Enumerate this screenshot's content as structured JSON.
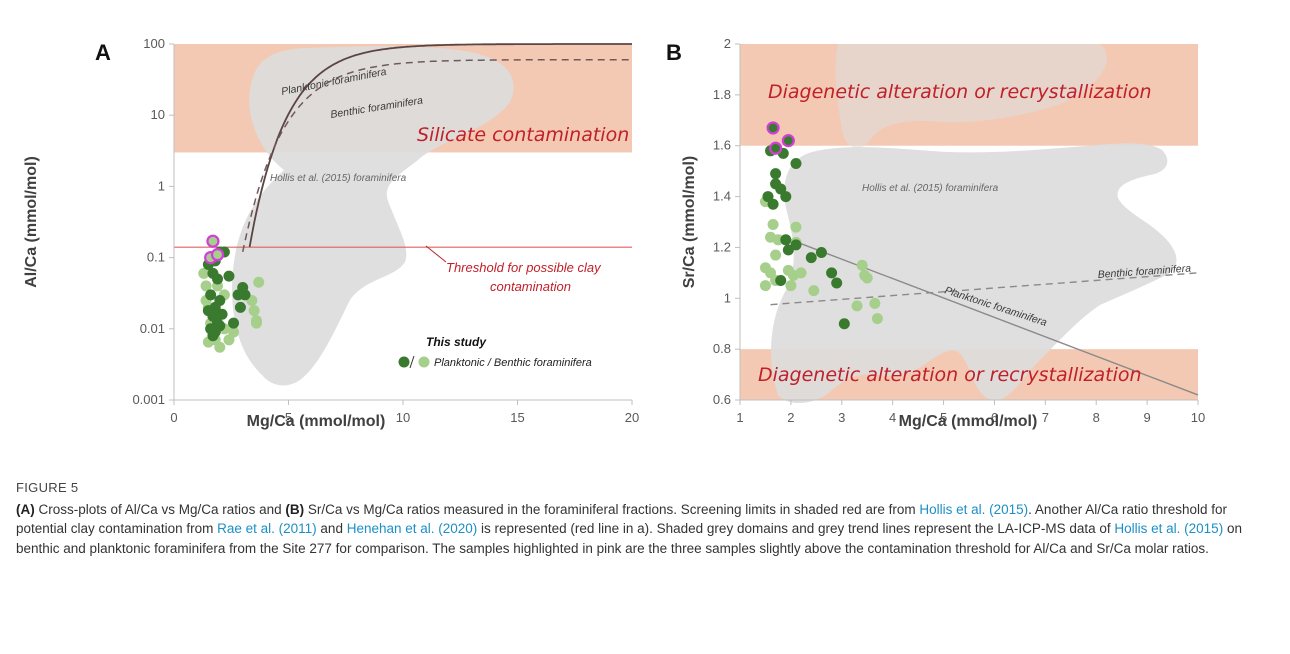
{
  "colors": {
    "planktonic": "#3a7a2f",
    "benthic": "#a6cf8c",
    "highlight": "#d23fd8",
    "contamination_zone": "#f4c9b3",
    "hollis_domain": "#dcdcdc",
    "threshold_line": "#e06060",
    "link": "#1c8fc7"
  },
  "chart_data": [
    {
      "panel": "A",
      "type": "scatter",
      "xlabel": "Mg/Ca (mmol/mol)",
      "ylabel": "Al/Ca (mmol/mol)",
      "xlim": [
        0,
        20
      ],
      "ylim": [
        0.001,
        100
      ],
      "yscale": "log",
      "xticks": [
        "0",
        "5",
        "10",
        "15",
        "20"
      ],
      "yticks": [
        "0.001",
        "0.01",
        "0.1",
        "1",
        "10",
        "100"
      ],
      "shaded_zone": {
        "label": "Silicate contamination",
        "y_from": 3,
        "y_to": 100
      },
      "threshold": {
        "label_line1": "Threshold for possible clay",
        "label_line2": "contamination",
        "y": 0.14
      },
      "domain_label": "Hollis et al. (2015) foraminifera",
      "trend_lines": [
        {
          "name": "Planktonic foraminifera",
          "style": "solid"
        },
        {
          "name": "Benthic foraminifera",
          "style": "dashed"
        }
      ],
      "legend": {
        "title": "This study",
        "entry": "Planktonic / Benthic foraminifera"
      },
      "series": [
        {
          "name": "Planktonic",
          "points": [
            [
              1.6,
              0.1
            ],
            [
              1.8,
              0.09
            ],
            [
              2.0,
              0.12
            ],
            [
              2.2,
              0.12
            ],
            [
              1.5,
              0.08
            ],
            [
              1.7,
              0.06
            ],
            [
              1.9,
              0.05
            ],
            [
              1.6,
              0.03
            ],
            [
              1.8,
              0.02
            ],
            [
              2.0,
              0.025
            ],
            [
              1.5,
              0.018
            ],
            [
              1.7,
              0.015
            ],
            [
              1.9,
              0.012
            ],
            [
              1.6,
              0.01
            ],
            [
              1.8,
              0.009
            ],
            [
              2.1,
              0.016
            ],
            [
              2.4,
              0.055
            ],
            [
              2.6,
              0.012
            ],
            [
              2.8,
              0.03
            ],
            [
              3.0,
              0.038
            ],
            [
              3.1,
              0.03
            ],
            [
              2.9,
              0.02
            ],
            [
              1.7,
              0.008
            ],
            [
              2.0,
              0.011
            ]
          ]
        },
        {
          "name": "Benthic",
          "points": [
            [
              1.3,
              0.06
            ],
            [
              1.4,
              0.04
            ],
            [
              1.5,
              0.02
            ],
            [
              1.6,
              0.012
            ],
            [
              1.7,
              0.009
            ],
            [
              1.5,
              0.0065
            ],
            [
              1.8,
              0.007
            ],
            [
              2.0,
              0.0055
            ],
            [
              2.2,
              0.01
            ],
            [
              2.4,
              0.007
            ],
            [
              2.6,
              0.009
            ],
            [
              3.4,
              0.025
            ],
            [
              3.5,
              0.018
            ],
            [
              3.6,
              0.013
            ],
            [
              3.7,
              0.045
            ],
            [
              3.6,
              0.012
            ],
            [
              1.9,
              0.04
            ],
            [
              2.2,
              0.03
            ],
            [
              1.4,
              0.025
            ]
          ]
        },
        {
          "name": "Highlighted",
          "points": [
            [
              1.7,
              0.17
            ],
            [
              1.6,
              0.1
            ],
            [
              1.9,
              0.11
            ]
          ]
        }
      ]
    },
    {
      "panel": "B",
      "type": "scatter",
      "xlabel": "Mg/Ca (mmol/mol)",
      "ylabel": "Sr/Ca (mmol/mol)",
      "xlim": [
        1,
        10
      ],
      "ylim": [
        0.6,
        2
      ],
      "xticks": [
        "1",
        "2",
        "3",
        "4",
        "5",
        "6",
        "7",
        "8",
        "9",
        "10"
      ],
      "yticks": [
        "0.6",
        "0.8",
        "1",
        "1.2",
        "1.4",
        "1.6",
        "1.8",
        "2"
      ],
      "shaded_zones": [
        {
          "label": "Diagenetic alteration or recrystallization",
          "y_from": 1.6,
          "y_to": 2.0
        },
        {
          "label": "Diagenetic alteration or recrystallization",
          "y_from": 0.6,
          "y_to": 0.8
        }
      ],
      "domain_label": "Hollis et al. (2015) foraminifera",
      "trend_lines": [
        {
          "name": "Benthic foraminifera",
          "style": "dashed",
          "from": [
            1.6,
            0.975
          ],
          "to": [
            10,
            1.1
          ]
        },
        {
          "name": "Planktonic foraminifera",
          "style": "solid",
          "from": [
            2.0,
            1.23
          ],
          "to": [
            10,
            0.62
          ]
        }
      ],
      "series": [
        {
          "name": "Planktonic",
          "points": [
            [
              1.6,
              1.58
            ],
            [
              1.85,
              1.57
            ],
            [
              2.1,
              1.53
            ],
            [
              1.7,
              1.49
            ],
            [
              1.7,
              1.45
            ],
            [
              1.8,
              1.43
            ],
            [
              1.9,
              1.4
            ],
            [
              1.65,
              1.37
            ],
            [
              1.55,
              1.4
            ],
            [
              1.9,
              1.23
            ],
            [
              2.1,
              1.21
            ],
            [
              1.95,
              1.19
            ],
            [
              2.6,
              1.18
            ],
            [
              2.4,
              1.16
            ],
            [
              2.8,
              1.1
            ],
            [
              2.9,
              1.06
            ],
            [
              1.8,
              1.07
            ],
            [
              3.05,
              0.9
            ]
          ]
        },
        {
          "name": "Benthic",
          "points": [
            [
              1.5,
              1.38
            ],
            [
              1.65,
              1.29
            ],
            [
              1.6,
              1.24
            ],
            [
              1.75,
              1.23
            ],
            [
              2.1,
              1.28
            ],
            [
              2.1,
              1.22
            ],
            [
              1.7,
              1.17
            ],
            [
              1.5,
              1.12
            ],
            [
              1.6,
              1.1
            ],
            [
              1.5,
              1.05
            ],
            [
              1.7,
              1.07
            ],
            [
              1.95,
              1.11
            ],
            [
              2.05,
              1.09
            ],
            [
              2.2,
              1.1
            ],
            [
              2.0,
              1.05
            ],
            [
              2.45,
              1.03
            ],
            [
              3.4,
              1.13
            ],
            [
              3.45,
              1.09
            ],
            [
              3.5,
              1.08
            ],
            [
              3.3,
              0.97
            ],
            [
              3.65,
              0.98
            ],
            [
              3.7,
              0.92
            ]
          ]
        },
        {
          "name": "Highlighted",
          "points": [
            [
              1.65,
              1.67
            ],
            [
              1.7,
              1.59
            ],
            [
              1.95,
              1.62
            ]
          ]
        }
      ]
    }
  ],
  "caption": {
    "figure_label": "FIGURE 5",
    "seg1": "(A)",
    "seg2": " Cross-plots of Al/Ca vs Mg/Ca ratios and ",
    "seg3": "(B)",
    "seg4": " Sr/Ca vs Mg/Ca ratios measured in the foraminiferal fractions. Screening limits in shaded red are from ",
    "ref1": "Hollis et al. (2015)",
    "seg5": ". Another Al/Ca ratio threshold for potential clay contamination from ",
    "ref2": "Rae et al. (2011)",
    "seg6": " and ",
    "ref3": "Henehan et al. (2020)",
    "seg7": " is represented (red line in a). Shaded grey domains and grey trend lines represent the LA-ICP-MS data of ",
    "ref4": "Hollis et al. (2015)",
    "seg8": " on benthic and planktonic foraminifera from the Site 277 for comparison. The samples highlighted in pink are the three samples slightly above the contamination threshold for Al/Ca and Sr/Ca molar ratios."
  }
}
